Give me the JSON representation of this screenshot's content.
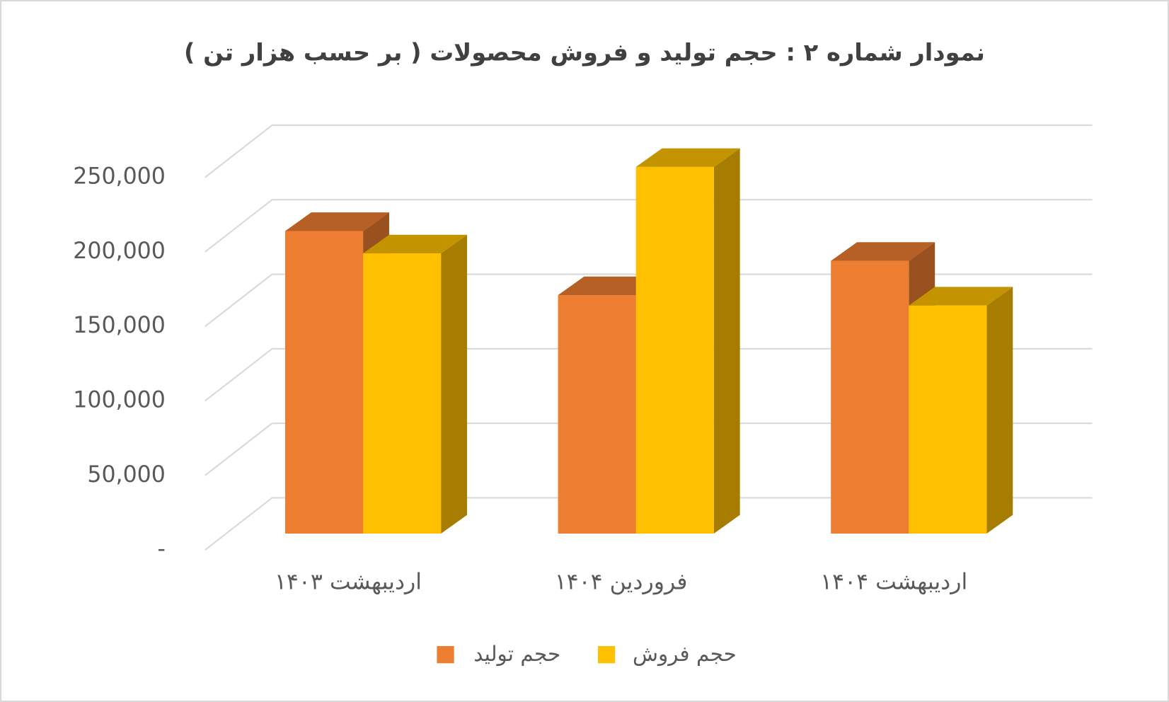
{
  "chart_data": {
    "type": "bar3d",
    "title": "نمودار شماره ۲ : حجم  تولید و فروش محصولات ( بر حسب هزار تن )",
    "categories": [
      "اردیبهشت ۱۴۰۳",
      "فروردین ۱۴۰۴",
      "اردیبهشت ۱۴۰۴"
    ],
    "series": [
      {
        "name": "حجم تولید",
        "color": "#ED7D31",
        "values": [
          203000,
          160000,
          183000
        ]
      },
      {
        "name": "حجم فروش",
        "color": "#FFC000",
        "values": [
          188000,
          246000,
          153000
        ]
      }
    ],
    "ylim": [
      0,
      250000
    ],
    "yticks": [
      {
        "value": 0,
        "label": "-"
      },
      {
        "value": 50000,
        "label": "50,000"
      },
      {
        "value": 100000,
        "label": "100,000"
      },
      {
        "value": 150000,
        "label": "150,000"
      },
      {
        "value": 200000,
        "label": "200,000"
      },
      {
        "value": 250000,
        "label": "250,000"
      }
    ],
    "grid": true,
    "legend": "bottom"
  }
}
